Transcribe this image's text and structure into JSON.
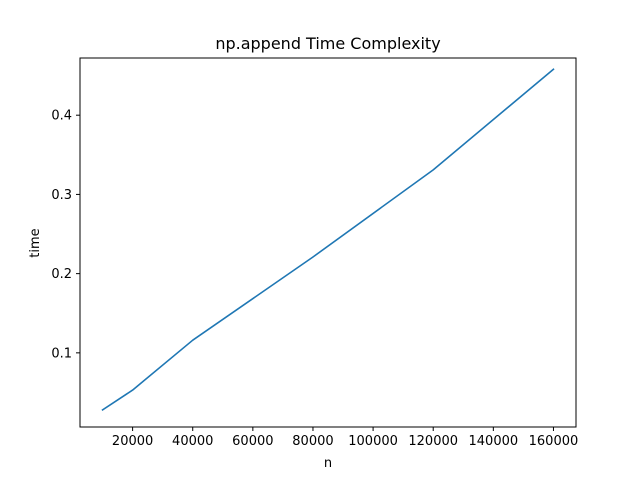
{
  "chart_data": {
    "type": "line",
    "title": "np.append Time Complexity",
    "xlabel": "n",
    "ylabel": "time",
    "xlim": [
      2500,
      167500
    ],
    "ylim": [
      0.0064,
      0.4722
    ],
    "xticks": [
      20000,
      40000,
      60000,
      80000,
      100000,
      120000,
      140000,
      160000
    ],
    "yticks": [
      0.1,
      0.2,
      0.3,
      0.4
    ],
    "grid": false,
    "legend": "none",
    "series": [
      {
        "color": "#1f77b4",
        "x": [
          10000,
          20000,
          40000,
          80000,
          120000,
          160000
        ],
        "y": [
          0.028,
          0.053,
          0.116,
          0.221,
          0.331,
          0.458
        ]
      }
    ]
  }
}
